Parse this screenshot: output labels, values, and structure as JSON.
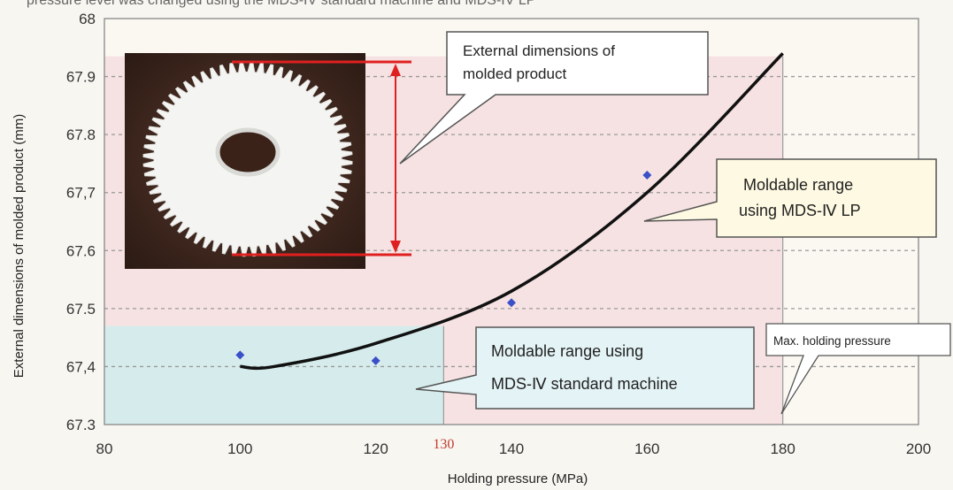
{
  "header_fragment": "pressure level was changed using the MDS-IV standard machine and MDS-IV LP",
  "chart_data": {
    "type": "scatter",
    "xlabel": "Holding pressure (MPa)",
    "ylabel": "External dimensions of molded product (mm)",
    "xlim": [
      80,
      200
    ],
    "ylim": [
      67.3,
      68.0
    ],
    "x_ticks": [
      "80",
      "100",
      "120",
      "140",
      "160",
      "180",
      "200"
    ],
    "y_ticks": [
      "67.3",
      "67,4",
      "67.5",
      "67.6",
      "67,7",
      "67.8",
      "67.9",
      "68"
    ],
    "grid": "horizontal dashed",
    "series": [
      {
        "x": [
          100,
          120,
          140,
          160
        ],
        "y": [
          67.42,
          67.41,
          67.51,
          67.73
        ],
        "color": "#3a4fc8"
      }
    ],
    "trend_curve": {
      "x": [
        100,
        105,
        120,
        140,
        160,
        180
      ],
      "y": [
        67.4,
        67.4,
        67.44,
        67.53,
        67.7,
        67.94
      ]
    },
    "marker_130": {
      "value": 130,
      "label": "130",
      "color": "#c0392b"
    },
    "regions": {
      "standard": {
        "label_lines": [
          "Moldable range using",
          "MDS-Ⅳ standard machine"
        ],
        "fill": "#d6ecec"
      },
      "lp": {
        "label_lines": [
          "Moldable range",
          "using MDS-Ⅳ LP"
        ],
        "fill": "#f6e2e2"
      }
    },
    "annotations": {
      "external_dims": [
        "External dimensions of",
        "molded product"
      ],
      "max_pressure": "Max. holding pressure"
    }
  }
}
